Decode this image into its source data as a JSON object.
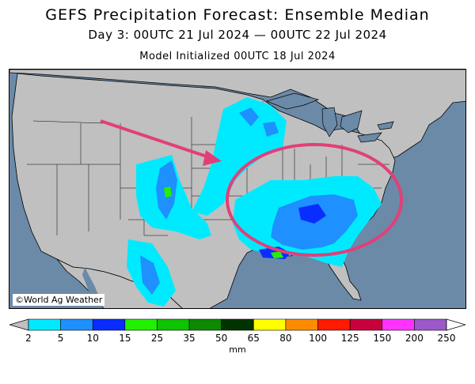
{
  "header": {
    "title": "GEFS Precipitation Forecast: Ensemble Median",
    "subtitle": "Day 3: 00UTC 21 Jul 2024 — 00UTC 22 Jul 2024",
    "initialized": "Model Initialized 00UTC 18 Jul 2024"
  },
  "map": {
    "copyright": "©World Ag Weather",
    "land_color": "#c0c0c0",
    "water_color": "#6b8aa8",
    "annotation_color": "#e0407a"
  },
  "legend": {
    "units": "mm",
    "ticks": [
      "2",
      "5",
      "10",
      "15",
      "25",
      "35",
      "50",
      "65",
      "80",
      "100",
      "125",
      "150",
      "200",
      "250"
    ],
    "colors": [
      "#00eaff",
      "#1e90ff",
      "#0a2dff",
      "#22f000",
      "#0ec300",
      "#0e8a00",
      "#003300",
      "#ffff00",
      "#ff8c00",
      "#ff1a00",
      "#c8003c",
      "#ff33ff",
      "#9b59c9"
    ]
  }
}
